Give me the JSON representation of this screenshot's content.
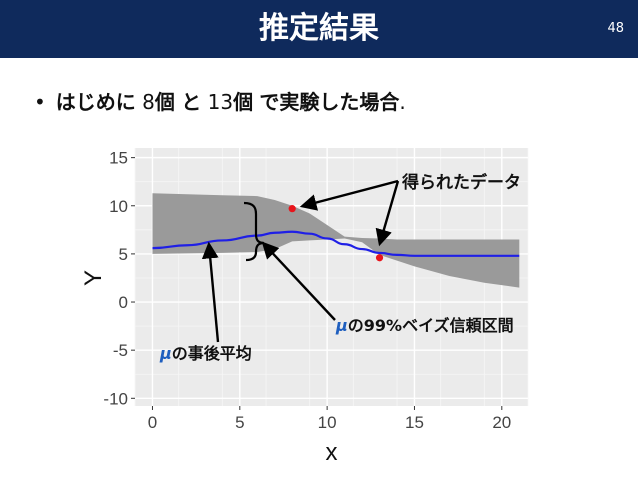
{
  "header": {
    "title": "推定結果",
    "page": "48"
  },
  "bullet": {
    "symbol": "•",
    "seg1": "はじめに",
    "seg2": "8",
    "seg3": "個",
    "seg4": "と",
    "seg5": "13",
    "seg6": "個",
    "seg7": "で実験した場合",
    "seg8": "."
  },
  "annotations": {
    "observed": "得られたデータ",
    "interval_mu": "μ",
    "interval_text": "の99%ベイズ信頼区間",
    "mean_mu": "μ",
    "mean_text": "の事後平均"
  },
  "colors": {
    "header_bg": "#0f2a5c",
    "panel_bg": "#ebebeb",
    "band": "#9a9a9a",
    "mean_line": "#1f1fe6",
    "points": "#e8141b",
    "mu_text": "#1f5fbf"
  },
  "chart_data": {
    "type": "line",
    "xlabel": "x",
    "ylabel": "Y",
    "xlim": [
      -1,
      21.5
    ],
    "ylim": [
      -10.8,
      16
    ],
    "x_ticks": [
      0,
      5,
      10,
      15,
      20
    ],
    "y_ticks": [
      -10,
      -5,
      0,
      5,
      10,
      15
    ],
    "grid": true,
    "series": [
      {
        "kind": "mean",
        "x": [
          0,
          2,
          4,
          6,
          7,
          8,
          9,
          10,
          11,
          12,
          13,
          14,
          15,
          17,
          19,
          21
        ],
        "y": [
          5.6,
          5.9,
          6.4,
          6.9,
          7.2,
          7.3,
          7.1,
          6.6,
          6.0,
          5.5,
          5.1,
          4.9,
          4.8,
          4.8,
          4.8,
          4.8
        ]
      },
      {
        "kind": "band",
        "x": [
          0,
          2,
          4,
          6,
          7,
          8,
          9,
          10,
          11,
          12,
          13,
          14,
          15,
          17,
          19,
          21
        ],
        "lower": [
          5.0,
          5.05,
          5.1,
          5.2,
          5.5,
          6.3,
          6.4,
          6.5,
          6.6,
          6.2,
          4.9,
          4.3,
          3.7,
          2.7,
          2.0,
          1.5
        ],
        "upper": [
          11.3,
          11.2,
          11.1,
          11.0,
          10.6,
          10.0,
          9.2,
          8.0,
          6.8,
          6.65,
          6.6,
          6.5,
          6.5,
          6.5,
          6.5,
          6.5
        ]
      },
      {
        "kind": "points",
        "x": [
          8,
          13
        ],
        "y": [
          9.7,
          4.6
        ]
      }
    ]
  }
}
